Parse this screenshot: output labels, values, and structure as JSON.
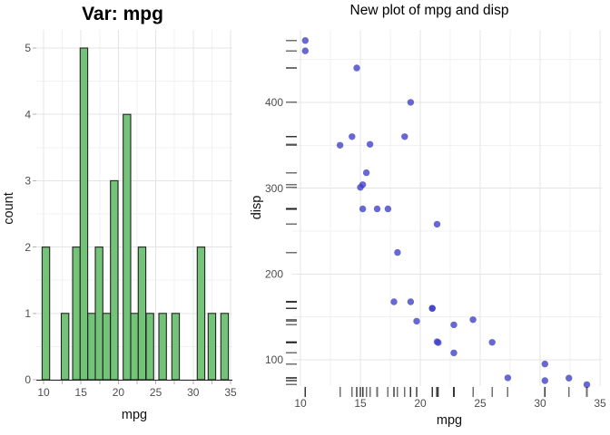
{
  "app": {
    "type": "plot-viewer",
    "background": "#ffffff"
  },
  "chart_data": [
    {
      "type": "bar",
      "subtype": "histogram",
      "title": "Var: mpg",
      "xlabel": "mpg",
      "ylabel": "count",
      "xlim": [
        9.5,
        35.6
      ],
      "ylim": [
        0,
        5.28
      ],
      "binwidth": 1.01,
      "bars": [
        {
          "x": 9.8,
          "count": 2
        },
        {
          "x": 12.37,
          "count": 1
        },
        {
          "x": 13.88,
          "count": 2
        },
        {
          "x": 14.89,
          "count": 5
        },
        {
          "x": 15.91,
          "count": 1
        },
        {
          "x": 16.92,
          "count": 2
        },
        {
          "x": 17.93,
          "count": 1
        },
        {
          "x": 18.94,
          "count": 3
        },
        {
          "x": 20.64,
          "count": 4
        },
        {
          "x": 21.65,
          "count": 1
        },
        {
          "x": 22.66,
          "count": 2
        },
        {
          "x": 23.71,
          "count": 1
        },
        {
          "x": 25.41,
          "count": 1
        },
        {
          "x": 27.15,
          "count": 1
        },
        {
          "x": 30.55,
          "count": 2
        },
        {
          "x": 32.0,
          "count": 1
        },
        {
          "x": 33.7,
          "count": 1
        }
      ],
      "x_ticks": [
        10,
        15,
        20,
        25,
        30,
        35
      ],
      "x_tick_labels": [
        "10",
        "15",
        "20",
        "25",
        "30",
        "35"
      ],
      "x_minor": [
        12.5,
        17.5,
        22.5,
        27.5,
        32.5
      ],
      "y_ticks": [
        0,
        1,
        2,
        3,
        4,
        5
      ],
      "y_tick_labels": [
        "0",
        "1",
        "2",
        "3",
        "4",
        "5"
      ],
      "y_minor": [
        0.5,
        1.5,
        2.5,
        3.5,
        4.5
      ],
      "grid": true,
      "colors": {
        "bar_fill": "#73c378",
        "bar_stroke": "#222222",
        "axis_line": "#1f1f1f",
        "grid_major": "#e4e4e4",
        "grid_minor": "#f1f1f1",
        "tick_mark": "#b3b3b3",
        "tick_label": "#4d4d4d"
      }
    },
    {
      "type": "scatter",
      "title": "New plot of mpg and disp",
      "xlabel": "mpg",
      "ylabel": "disp",
      "xlim": [
        9.2,
        35.3
      ],
      "ylim": [
        55,
        485
      ],
      "points": [
        [
          21.0,
          160.0
        ],
        [
          21.0,
          160.0
        ],
        [
          22.8,
          108.0
        ],
        [
          21.4,
          258.0
        ],
        [
          18.7,
          360.0
        ],
        [
          18.1,
          225.0
        ],
        [
          14.3,
          360.0
        ],
        [
          24.4,
          146.7
        ],
        [
          22.8,
          140.8
        ],
        [
          19.2,
          167.6
        ],
        [
          17.8,
          167.6
        ],
        [
          16.4,
          275.8
        ],
        [
          17.3,
          275.8
        ],
        [
          15.2,
          275.8
        ],
        [
          10.4,
          472.0
        ],
        [
          10.4,
          460.0
        ],
        [
          14.7,
          440.0
        ],
        [
          32.4,
          78.7
        ],
        [
          30.4,
          75.7
        ],
        [
          33.9,
          71.1
        ],
        [
          21.5,
          120.1
        ],
        [
          15.5,
          318.0
        ],
        [
          15.2,
          304.0
        ],
        [
          13.3,
          350.0
        ],
        [
          19.2,
          400.0
        ],
        [
          27.3,
          79.0
        ],
        [
          26.0,
          120.3
        ],
        [
          30.4,
          95.1
        ],
        [
          15.8,
          351.0
        ],
        [
          19.7,
          145.0
        ],
        [
          15.0,
          301.0
        ],
        [
          21.4,
          121.0
        ]
      ],
      "rug_sides": "bottom-left",
      "x_ticks": [
        10,
        15,
        20,
        25,
        30,
        35
      ],
      "x_tick_labels": [
        "10",
        "15",
        "20",
        "25",
        "30",
        "35"
      ],
      "x_minor": [
        12.5,
        17.5,
        22.5,
        27.5,
        32.5
      ],
      "y_ticks": [
        100,
        200,
        300,
        400
      ],
      "y_tick_labels": [
        "100",
        "200",
        "300",
        "400"
      ],
      "y_minor": [
        150,
        250,
        350,
        450
      ],
      "grid": true,
      "legend": "none",
      "colors": {
        "point": "#3e3ec6",
        "point_opacity": 0.78,
        "rug": "#111111",
        "rug_opacity": 0.6,
        "grid_major": "#e4e4e4",
        "grid_minor": "#f1f1f1",
        "tick_label": "#4d4d4d"
      }
    }
  ]
}
